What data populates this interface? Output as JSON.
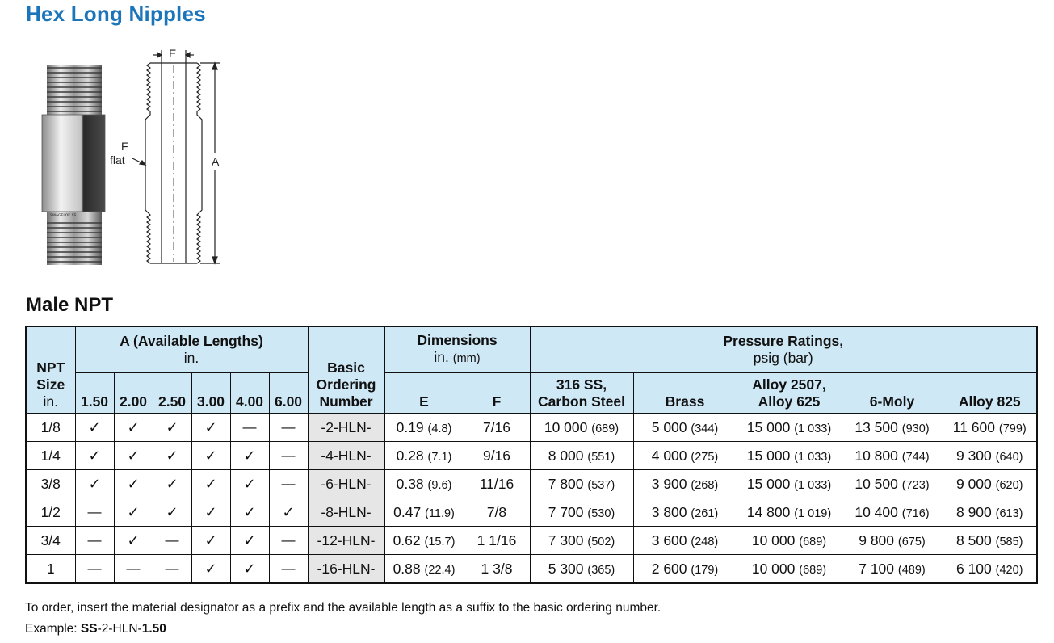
{
  "title": "Hex Long Nipples",
  "figure": {
    "photo_icon": "hex-long-nipple-photo",
    "drawing_icon": "hex-long-nipple-drawing",
    "labels": {
      "e": "E",
      "f": "F",
      "flat": "flat",
      "a": "A"
    },
    "body_marking": "SWAGELOK SS"
  },
  "section_title": "Male NPT",
  "table": {
    "headers": {
      "npt_size": [
        "NPT",
        "Size",
        "in."
      ],
      "available_lengths": {
        "title": "A (Available Lengths)",
        "unit": "in.",
        "lengths": [
          "1.50",
          "2.00",
          "2.50",
          "3.00",
          "4.00",
          "6.00"
        ]
      },
      "basic_ordering": [
        "Basic",
        "Ordering",
        "Number"
      ],
      "dimensions": {
        "title": "Dimensions",
        "unit_in": "in.",
        "unit_mm": "(mm)",
        "e": "E",
        "f": "F"
      },
      "pressure": {
        "title": "Pressure Ratings,",
        "unit": "psig (bar)",
        "columns": [
          [
            "316 SS,",
            "Carbon Steel"
          ],
          [
            "Brass"
          ],
          [
            "Alloy 2507,",
            "Alloy 625"
          ],
          [
            "6-Moly"
          ],
          [
            "Alloy 825"
          ]
        ]
      }
    },
    "rows": [
      {
        "size": "1/8",
        "lengths": [
          "✓",
          "✓",
          "✓",
          "✓",
          "—",
          "—"
        ],
        "basic": "-2-HLN-",
        "e": "0.19",
        "e_mm": "(4.8)",
        "f": "7/16",
        "p": [
          [
            "10 000",
            "(689)"
          ],
          [
            "5 000",
            "(344)"
          ],
          [
            "15 000",
            "(1 033)"
          ],
          [
            "13 500",
            "(930)"
          ],
          [
            "11 600",
            "(799)"
          ]
        ]
      },
      {
        "size": "1/4",
        "lengths": [
          "✓",
          "✓",
          "✓",
          "✓",
          "✓",
          "—"
        ],
        "basic": "-4-HLN-",
        "e": "0.28",
        "e_mm": "(7.1)",
        "f": "9/16",
        "p": [
          [
            "8 000",
            "(551)"
          ],
          [
            "4 000",
            "(275)"
          ],
          [
            "15 000",
            "(1 033)"
          ],
          [
            "10 800",
            "(744)"
          ],
          [
            "9 300",
            "(640)"
          ]
        ]
      },
      {
        "size": "3/8",
        "lengths": [
          "✓",
          "✓",
          "✓",
          "✓",
          "✓",
          "—"
        ],
        "basic": "-6-HLN-",
        "e": "0.38",
        "e_mm": "(9.6)",
        "f": "11/16",
        "p": [
          [
            "7 800",
            "(537)"
          ],
          [
            "3 900",
            "(268)"
          ],
          [
            "15 000",
            "(1 033)"
          ],
          [
            "10 500",
            "(723)"
          ],
          [
            "9 000",
            "(620)"
          ]
        ]
      },
      {
        "size": "1/2",
        "lengths": [
          "—",
          "✓",
          "✓",
          "✓",
          "✓",
          "✓"
        ],
        "basic": "-8-HLN-",
        "e": "0.47",
        "e_mm": "(11.9)",
        "f": "7/8",
        "p": [
          [
            "7 700",
            "(530)"
          ],
          [
            "3 800",
            "(261)"
          ],
          [
            "14 800",
            "(1 019)"
          ],
          [
            "10 400",
            "(716)"
          ],
          [
            "8 900",
            "(613)"
          ]
        ]
      },
      {
        "size": "3/4",
        "lengths": [
          "—",
          "✓",
          "—",
          "✓",
          "✓",
          "—"
        ],
        "basic": "-12-HLN-",
        "e": "0.62",
        "e_mm": "(15.7)",
        "f": "1 1/16",
        "p": [
          [
            "7 300",
            "(502)"
          ],
          [
            "3 600",
            "(248)"
          ],
          [
            "10 000",
            "(689)"
          ],
          [
            "9 800",
            "(675)"
          ],
          [
            "8 500",
            "(585)"
          ]
        ]
      },
      {
        "size": "1",
        "lengths": [
          "—",
          "—",
          "—",
          "✓",
          "✓",
          "—"
        ],
        "basic": "-16-HLN-",
        "e": "0.88",
        "e_mm": "(22.4)",
        "f": "1 3/8",
        "p": [
          [
            "5 300",
            "(365)"
          ],
          [
            "2 600",
            "(179)"
          ],
          [
            "10 000",
            "(689)"
          ],
          [
            "7 100",
            "(489)"
          ],
          [
            "6 100",
            "(420)"
          ]
        ]
      }
    ]
  },
  "notes": {
    "line1": "To order, insert the material designator as a prefix and the available length as a suffix to the basic ordering number.",
    "example_label": "Example: ",
    "example_prefix": "SS",
    "example_middle": "-2-HLN-",
    "example_suffix": "1.50"
  },
  "colors": {
    "title": "#1b75bb",
    "header_bg": "#cfe8f6",
    "basic_bg": "#e6e6e6"
  }
}
